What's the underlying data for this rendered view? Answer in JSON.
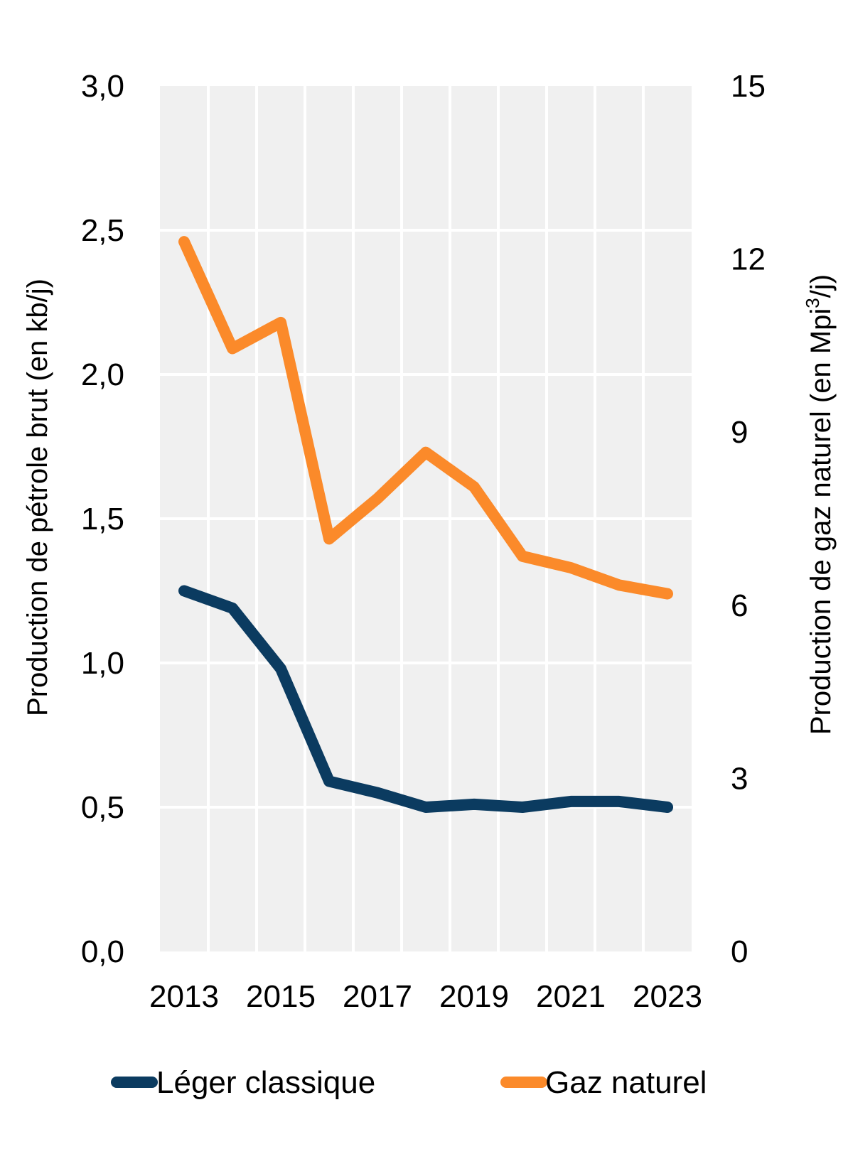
{
  "chart_data": {
    "type": "line",
    "categories": [
      "2013",
      "2014",
      "2015",
      "2016",
      "2017",
      "2018",
      "2019",
      "2020",
      "2021",
      "2022",
      "2023"
    ],
    "x_tick_labels": [
      "2013",
      "2015",
      "2017",
      "2019",
      "2021",
      "2023"
    ],
    "series": [
      {
        "name": "Léger classique",
        "axis": "left",
        "color": "#0b3b60",
        "values": [
          1.25,
          1.19,
          0.98,
          0.59,
          0.55,
          0.5,
          0.51,
          0.5,
          0.52,
          0.52,
          0.5
        ]
      },
      {
        "name": "Gaz naturel",
        "axis": "right",
        "color": "#fb8a2a",
        "values": [
          12.3,
          10.45,
          10.9,
          7.15,
          7.85,
          8.65,
          8.05,
          6.85,
          6.65,
          6.35,
          6.2
        ]
      }
    ],
    "y_left": {
      "label": "Production de pétrole brut (en kb/j)",
      "range": [
        0,
        3
      ],
      "ticks": [
        "0,0",
        "0,5",
        "1,0",
        "1,5",
        "2,0",
        "2,5",
        "3,0"
      ]
    },
    "y_right": {
      "label_main": "Production de gaz naturel  (en Mpi",
      "label_sup": "3",
      "label_end": "/j)",
      "range": [
        0,
        15
      ],
      "ticks": [
        "0",
        "3",
        "6",
        "9",
        "12",
        "15"
      ]
    },
    "grid": true,
    "legend_position": "bottom",
    "plot_background": "#f0f0f0"
  }
}
